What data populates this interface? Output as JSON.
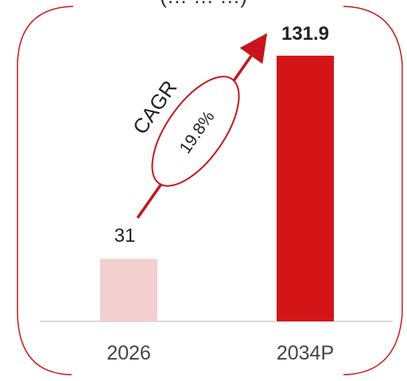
{
  "chart_data": {
    "type": "bar",
    "title": "(… … …)",
    "categories": [
      "2026",
      "2034P"
    ],
    "values": [
      31,
      131.9
    ],
    "value_labels": [
      "31",
      "131.9"
    ],
    "ylim": [
      0,
      140
    ],
    "bar_colors": [
      "#f4cfcf",
      "#d41518"
    ],
    "annotation": {
      "label": "CAGR",
      "value": "19.8%",
      "arrow_color": "#c8141a"
    },
    "grid": false,
    "legend": "none"
  }
}
